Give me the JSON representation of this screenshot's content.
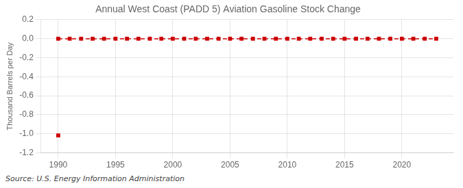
{
  "chart_data": {
    "type": "line",
    "title": "Annual West Coast (PADD 5) Aviation Gasoline Stock Change",
    "ylabel": "Thousand Barrels per Day",
    "source": "Source: U.S. Energy Information Administration",
    "series": [
      {
        "x": [
          1990,
          1991,
          1992,
          1993,
          1994,
          1995,
          1996,
          1997,
          1998,
          1999,
          2000,
          2001,
          2002,
          2003,
          2004,
          2005,
          2006,
          2007,
          2008,
          2009,
          2010,
          2011,
          2012,
          2013,
          2014,
          2015,
          2016,
          2017,
          2018,
          2019,
          2020,
          2021,
          2022,
          2023
        ],
        "values": [
          0.0,
          0.0,
          0.0,
          0.0,
          0.0,
          0.0,
          0.0,
          0.0,
          0.0,
          0.0,
          0.0,
          0.0,
          0.0,
          0.0,
          0.0,
          0.0,
          0.0,
          0.0,
          0.0,
          0.0,
          0.0,
          0.0,
          0.0,
          0.0,
          0.0,
          0.0,
          0.0,
          0.0,
          0.0,
          0.0,
          0.0,
          0.0,
          0.0,
          0.0
        ],
        "color": "#cc0000",
        "marker": "square",
        "line_style": "dashed"
      },
      {
        "x": [
          1990
        ],
        "values": [
          -1.0164
        ],
        "color": "#cc0000",
        "marker": "square",
        "line_style": "none"
      }
    ],
    "xlim": [
      1988.5,
      2024.5
    ],
    "xticks": [
      1990,
      1995,
      2000,
      2005,
      2010,
      2015,
      2020
    ],
    "ylim": [
      -1.2,
      0.2
    ],
    "yticks": [
      0.2,
      {
        "value": 0,
        "label": "0.0"
      },
      -0.2,
      -0.4,
      -0.6,
      -0.8,
      {
        "value": -1,
        "label": "-1.0"
      },
      -1.2
    ],
    "grid": true
  }
}
